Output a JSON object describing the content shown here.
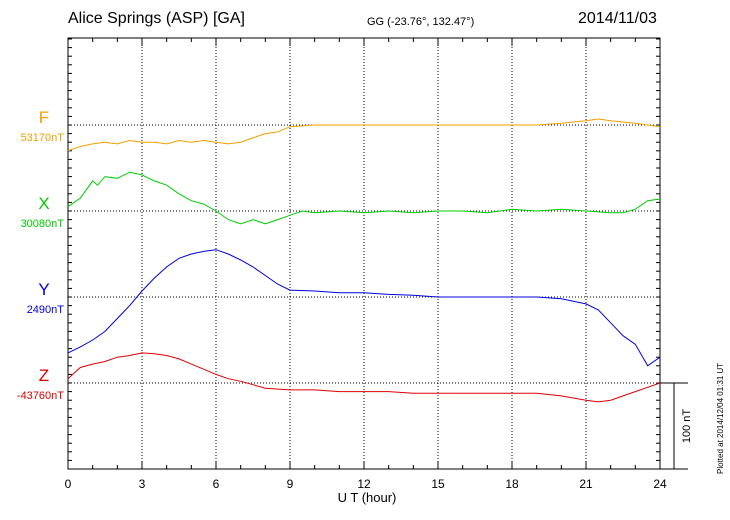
{
  "header": {
    "station": "Alice Springs (ASP)  [GA]",
    "coords": "GG (-23.76°, 132.47°)",
    "date": "2014/11/03"
  },
  "plotted_note": "Plotted at 2014/12/04 01:31  UT",
  "chart_data": {
    "type": "line",
    "xlabel": "U T (hour)",
    "xlim": [
      0,
      24
    ],
    "xticks": [
      "0",
      "3",
      "6",
      "9",
      "12",
      "15",
      "18",
      "21",
      "24"
    ],
    "grid": true,
    "scale_bar": "100 nT",
    "series": [
      {
        "name": "F",
        "baseline_label": "53170nT",
        "baseline_nT": 53170,
        "color": "#f0a000",
        "x": [
          0,
          0.5,
          1,
          1.5,
          2,
          2.5,
          3,
          3.5,
          4,
          4.5,
          5,
          5.5,
          6,
          6.5,
          7,
          7.5,
          8,
          8.5,
          9,
          10,
          11,
          12,
          13,
          14,
          15,
          16,
          17,
          18,
          19,
          20,
          21,
          21.5,
          22,
          23,
          24
        ],
        "values": [
          53140,
          53145,
          53148,
          53150,
          53148,
          53152,
          53150,
          53150,
          53148,
          53152,
          53150,
          53152,
          53150,
          53148,
          53150,
          53155,
          53160,
          53162,
          53168,
          53170,
          53170,
          53170,
          53170,
          53170,
          53170,
          53170,
          53170,
          53170,
          53170,
          53172,
          53175,
          53177,
          53175,
          53172,
          53168
        ]
      },
      {
        "name": "X",
        "baseline_label": "30080nT",
        "baseline_nT": 30080,
        "color": "#00cc00",
        "x": [
          0,
          0.5,
          1,
          1.2,
          1.5,
          2,
          2.5,
          3,
          3.5,
          4,
          4.5,
          5,
          5.5,
          6,
          6.5,
          7,
          7.5,
          8,
          8.5,
          9,
          9.5,
          10,
          11,
          12,
          13,
          14,
          15,
          16,
          17,
          18,
          19,
          20,
          21,
          22,
          22.5,
          23,
          23.5,
          24
        ],
        "values": [
          30085,
          30095,
          30115,
          30110,
          30120,
          30118,
          30125,
          30122,
          30115,
          30110,
          30100,
          30092,
          30088,
          30080,
          30070,
          30065,
          30070,
          30065,
          30070,
          30075,
          30080,
          30078,
          30080,
          30078,
          30080,
          30078,
          30080,
          30080,
          30078,
          30082,
          30080,
          30082,
          30080,
          30078,
          30078,
          30082,
          30092,
          30094
        ]
      },
      {
        "name": "Y",
        "baseline_label": "2490nT",
        "baseline_nT": 2490,
        "color": "#0000dd",
        "x": [
          0,
          0.5,
          1,
          1.5,
          2,
          2.5,
          3,
          3.5,
          4,
          4.5,
          5,
          5.5,
          6,
          6.5,
          7,
          7.5,
          8,
          8.5,
          9,
          10,
          11,
          12,
          13,
          14,
          15,
          16,
          17,
          18,
          19,
          20,
          21,
          21.5,
          22,
          22.5,
          23,
          23.5,
          24
        ],
        "values": [
          2425,
          2432,
          2440,
          2450,
          2465,
          2480,
          2497,
          2512,
          2525,
          2535,
          2540,
          2543,
          2545,
          2540,
          2533,
          2525,
          2515,
          2505,
          2498,
          2497,
          2495,
          2495,
          2493,
          2492,
          2490,
          2490,
          2490,
          2490,
          2490,
          2488,
          2482,
          2475,
          2460,
          2445,
          2435,
          2410,
          2420
        ]
      },
      {
        "name": "Z",
        "baseline_label": "-43760nT",
        "baseline_nT": -43760,
        "color": "#dd0000",
        "x": [
          0,
          0.5,
          1,
          1.5,
          2,
          2.5,
          3,
          3.5,
          4,
          4.5,
          5,
          5.5,
          6,
          6.5,
          7,
          7.5,
          8,
          9,
          10,
          11,
          12,
          13,
          14,
          15,
          16,
          17,
          18,
          19,
          20,
          21,
          21.5,
          22,
          22.5,
          23,
          23.5,
          24
        ],
        "values": [
          -43755,
          -43742,
          -43738,
          -43735,
          -43730,
          -43728,
          -43725,
          -43726,
          -43728,
          -43732,
          -43738,
          -43744,
          -43750,
          -43755,
          -43758,
          -43762,
          -43766,
          -43768,
          -43768,
          -43770,
          -43770,
          -43770,
          -43772,
          -43772,
          -43772,
          -43772,
          -43772,
          -43772,
          -43775,
          -43780,
          -43782,
          -43780,
          -43775,
          -43770,
          -43765,
          -43760
        ]
      }
    ]
  }
}
